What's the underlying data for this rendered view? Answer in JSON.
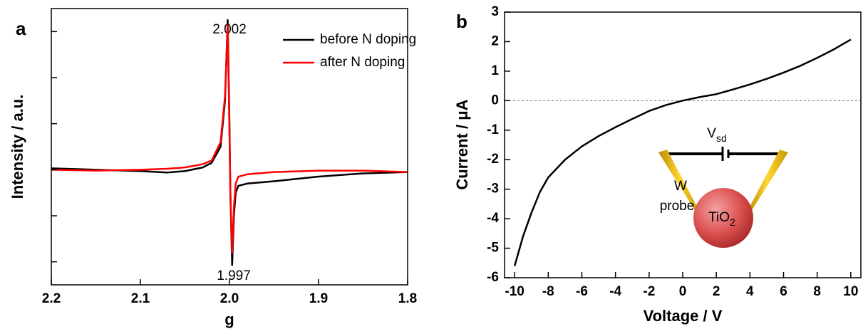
{
  "chart_data": [
    {
      "type": "line",
      "panel": "a",
      "xlabel": "g",
      "ylabel": "Intensity / a.u.",
      "x": [
        2.2,
        2.15,
        2.1,
        2.07,
        2.05,
        2.03,
        2.02,
        2.01,
        2.005,
        2.002,
        2.0,
        1.999,
        1.997,
        1.995,
        1.993,
        1.99,
        1.98,
        1.95,
        1.9,
        1.85,
        1.8
      ],
      "series": [
        {
          "name": "before N doping",
          "color": "#000000",
          "values": [
            0.03,
            0.0,
            -0.03,
            -0.06,
            -0.03,
            0.05,
            0.15,
            0.5,
            1.5,
            3.25,
            1.0,
            -0.5,
            -2.07,
            -1.0,
            -0.5,
            -0.35,
            -0.3,
            -0.25,
            -0.15,
            -0.08,
            -0.05
          ]
        },
        {
          "name": "after N doping",
          "color": "#ff0000",
          "values": [
            0.0,
            -0.02,
            0.0,
            0.02,
            0.05,
            0.12,
            0.2,
            0.6,
            1.6,
            3.14,
            0.8,
            -0.5,
            -1.81,
            -0.8,
            -0.3,
            -0.15,
            -0.1,
            -0.05,
            -0.02,
            -0.02,
            -0.05
          ]
        }
      ],
      "annotations": [
        "2.002",
        "1.997"
      ],
      "xlim": [
        2.2,
        1.8
      ],
      "xticks": [
        2.2,
        2.1,
        {
          "value": 2,
          "label": "2.0"
        },
        1.9,
        1.8
      ],
      "ylim": [
        -2.5,
        3.5
      ],
      "yticks": [
        -2,
        -1,
        0,
        1,
        2,
        3
      ],
      "ytick_labels": false,
      "legend": "upper right"
    },
    {
      "type": "line",
      "panel": "b",
      "xlabel": "Voltage / V",
      "ylabel": "Current / μA",
      "x": [
        -10,
        -9.5,
        -9,
        -8.5,
        -8,
        -7,
        -6,
        -5,
        -4,
        -3,
        -2,
        -1,
        0,
        1,
        2,
        3,
        4,
        5,
        6,
        7,
        8,
        9,
        10
      ],
      "series": [
        {
          "color": "#000000",
          "values": [
            -5.6,
            -4.6,
            -3.8,
            -3.1,
            -2.6,
            -2.0,
            -1.55,
            -1.2,
            -0.9,
            -0.62,
            -0.35,
            -0.15,
            0.0,
            0.12,
            0.22,
            0.38,
            0.55,
            0.74,
            0.95,
            1.18,
            1.45,
            1.74,
            2.07
          ]
        }
      ],
      "zero_line": true,
      "inset": {
        "source": "V",
        "source_sub": "sd",
        "probe": [
          "W",
          "probe"
        ],
        "particle": "TiO",
        "particle_sub": "2"
      },
      "xlim": [
        -10.6,
        10.6
      ],
      "xticks": [
        -10,
        -8,
        -6,
        -4,
        -2,
        0,
        2,
        4,
        6,
        8,
        10
      ],
      "ylim": [
        -6,
        3
      ],
      "yticks": [
        -6,
        -5,
        -4,
        -3,
        -2,
        -1,
        0,
        1,
        2,
        3
      ]
    }
  ]
}
